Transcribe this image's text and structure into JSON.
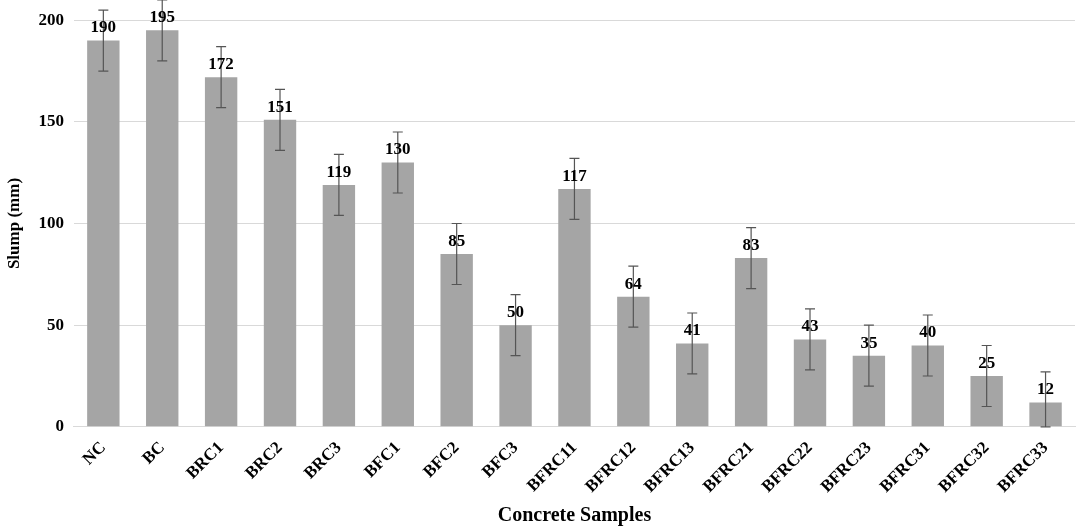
{
  "chart_data": {
    "type": "bar",
    "xlabel": "Concrete Samples",
    "ylabel": "Slump (mm)",
    "categories": [
      "NC",
      "BC",
      "BRC1",
      "BRC2",
      "BRC3",
      "BFC1",
      "BFC2",
      "BFC3",
      "BFRC11",
      "BFRC12",
      "BFRC13",
      "BFRC21",
      "BFRC22",
      "BFRC23",
      "BFRC31",
      "BFRC32",
      "BFRC33"
    ],
    "values": [
      190,
      195,
      172,
      151,
      119,
      130,
      85,
      50,
      117,
      64,
      41,
      83,
      43,
      35,
      40,
      25,
      12
    ],
    "errors": [
      15,
      15,
      15,
      15,
      15,
      15,
      15,
      15,
      15,
      15,
      15,
      15,
      15,
      15,
      15,
      15,
      [
        0,
        27
      ]
    ],
    "color": "#a5a5a5",
    "ylim": [
      0,
      200
    ],
    "yticks": [
      0,
      50,
      100,
      150,
      200
    ],
    "grid": "y",
    "data_labels": true,
    "legend": false
  }
}
